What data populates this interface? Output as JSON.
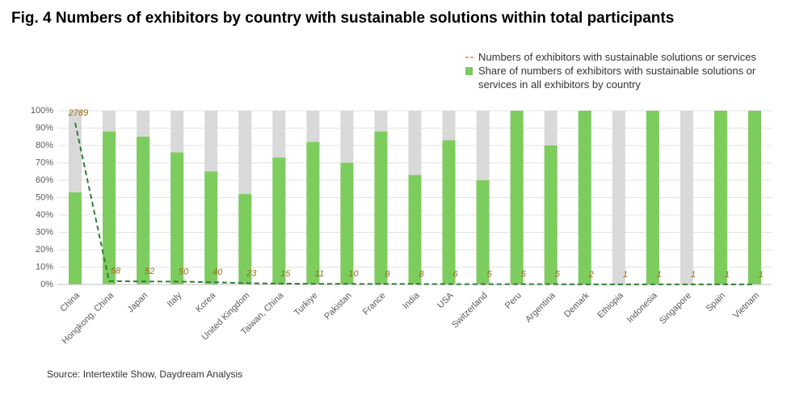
{
  "chart_data": {
    "type": "bar",
    "title": "Fig. 4 Numbers of exhibitors by country with sustainable solutions within total participants",
    "source": "Source: Intertextile Show, Daydream Analysis",
    "categories": [
      "China",
      "Hongkong, China",
      "Japan",
      "Italy",
      "Korea",
      "United Kingdom",
      "Taiwan, China",
      "Turkiye",
      "Pakistan",
      "France",
      "India",
      "USA",
      "Switzerland",
      "Peru",
      "Argentina",
      "Demark",
      "Ethiopia",
      "Indonesia",
      "Singapore",
      "Spain",
      "Vietnam"
    ],
    "series": [
      {
        "name": "Share of numbers of exhibitors with sustainable solutions or services in all exhibitors by country",
        "type": "bar",
        "color": "#7dcc5e",
        "values": [
          53,
          88,
          85,
          76,
          65,
          52,
          73,
          82,
          70,
          88,
          63,
          83,
          60,
          100,
          80,
          100,
          0,
          100,
          0,
          100,
          100
        ]
      },
      {
        "name": "Numbers of exhibitors with sustainable solutions or services",
        "type": "line",
        "axis": "y2",
        "color": "#2e7d32",
        "legend_color": "#e8803a",
        "label_color": "#9a6a1a",
        "values": [
          2789,
          58,
          52,
          50,
          40,
          23,
          15,
          11,
          10,
          8,
          8,
          6,
          5,
          5,
          5,
          2,
          1,
          1,
          1,
          1,
          1
        ]
      }
    ],
    "ylim": [
      0,
      100
    ],
    "yticks": [
      {
        "value": 0,
        "label": "0%"
      },
      {
        "value": 10,
        "label": "10%"
      },
      {
        "value": 20,
        "label": "20%"
      },
      {
        "value": 30,
        "label": "30%"
      },
      {
        "value": 40,
        "label": "40%"
      },
      {
        "value": 50,
        "label": "50%"
      },
      {
        "value": 60,
        "label": "60%"
      },
      {
        "value": 70,
        "label": "70%"
      },
      {
        "value": 80,
        "label": "80%"
      },
      {
        "value": 90,
        "label": "90%"
      },
      {
        "value": 100,
        "label": "100%"
      }
    ],
    "y2lim": [
      0,
      3000
    ],
    "grid": true
  }
}
